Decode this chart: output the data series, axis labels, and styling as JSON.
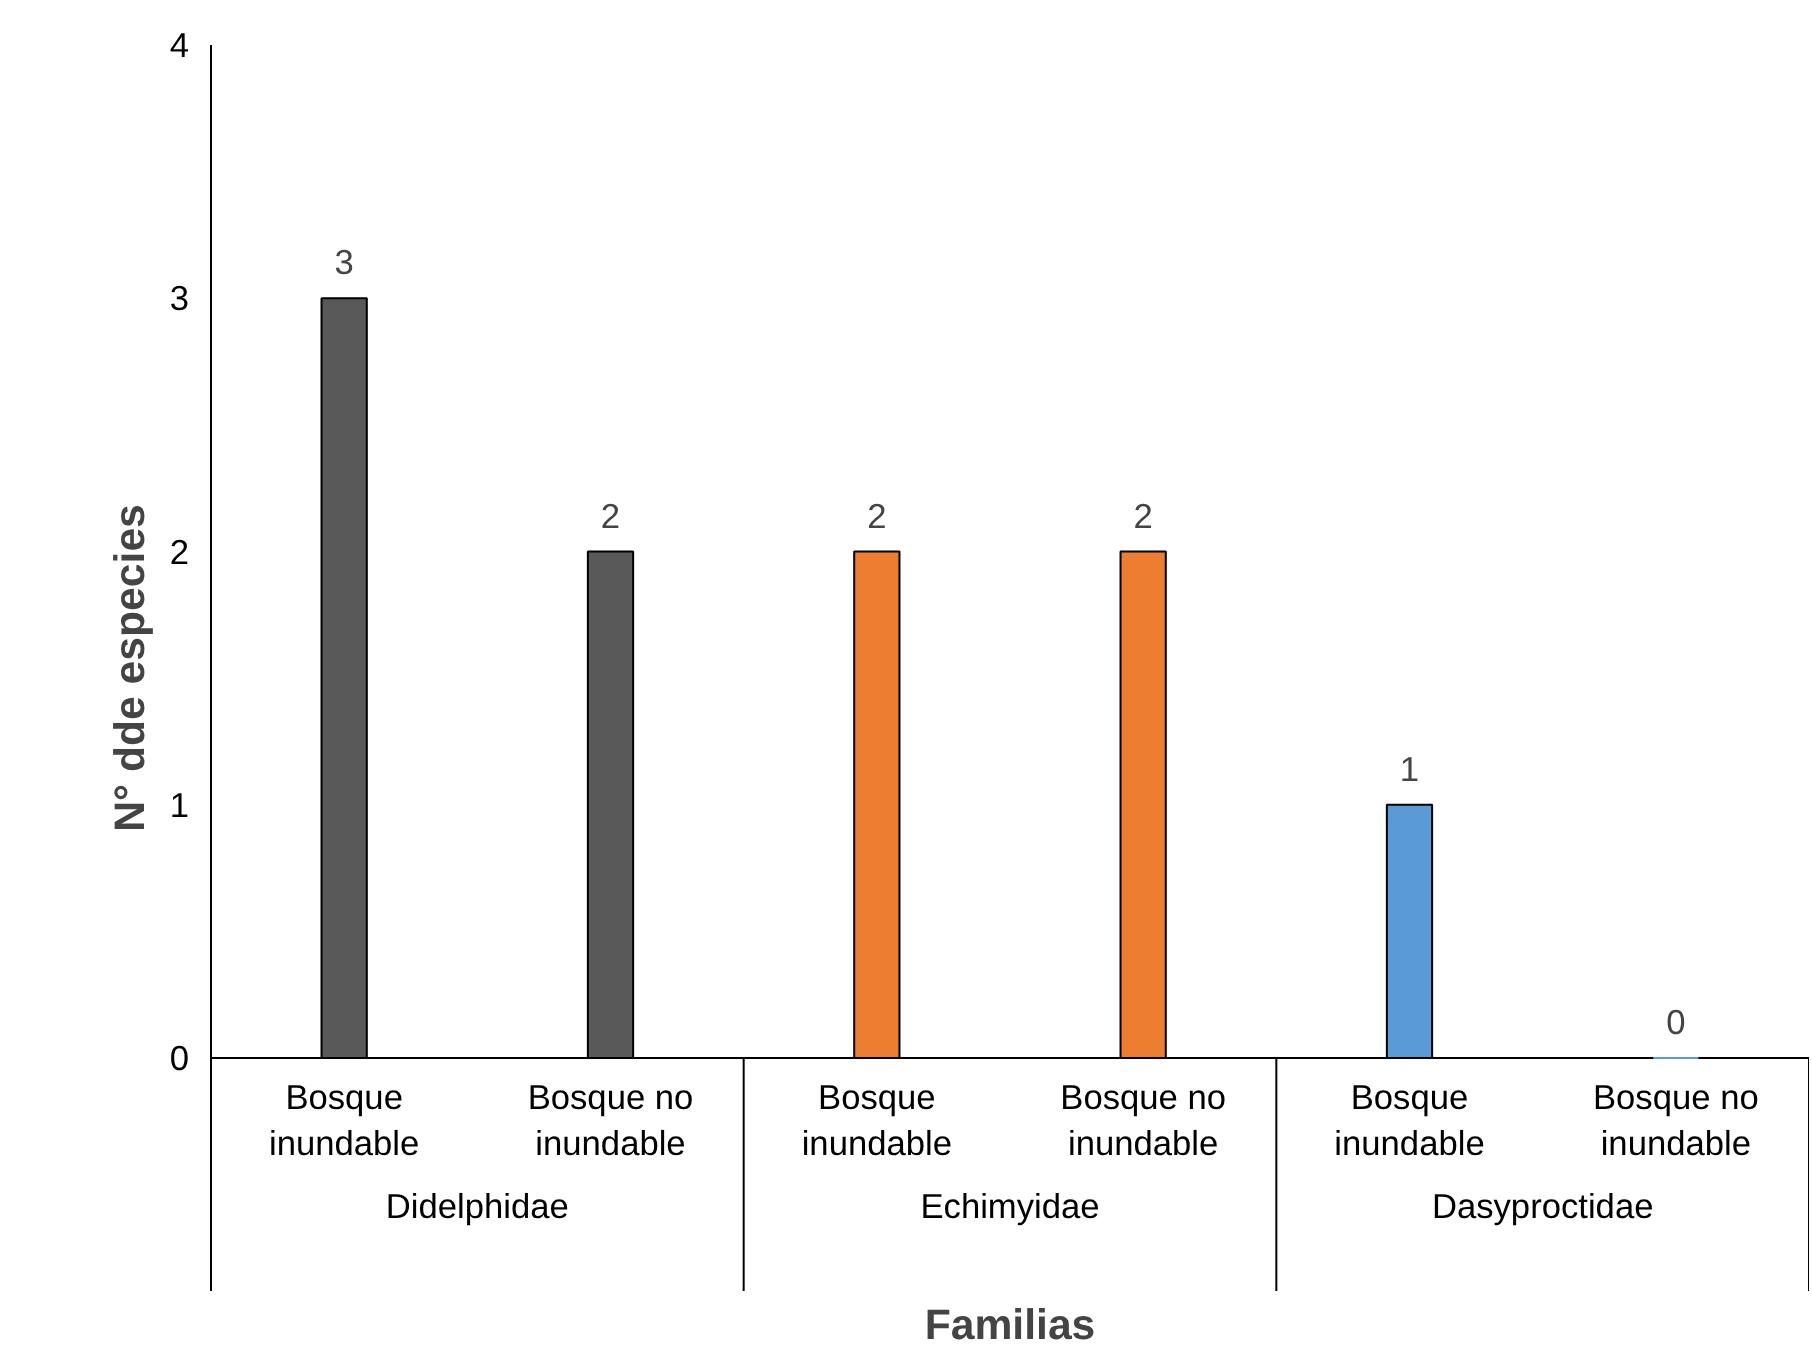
{
  "chart_data": {
    "type": "bar",
    "ylabel": "N° dde especies",
    "xlabel": "Familias",
    "categories": [
      "Bosque inundable",
      "Bosque no inundable",
      "Bosque inundable",
      "Bosque no inundable",
      "Bosque inundable",
      "Bosque no inundable"
    ],
    "series": [
      {
        "color": "#595959",
        "values": [
          3,
          2,
          null,
          null,
          null,
          null
        ]
      },
      {
        "color": "#ed7d31",
        "values": [
          null,
          null,
          2,
          2,
          null,
          null
        ]
      },
      {
        "color": "#5b9bd5",
        "values": [
          null,
          null,
          null,
          null,
          1,
          0
        ]
      }
    ],
    "annotations": [
      "Didelphidae",
      "Echimyidae",
      "Dasyproctidae"
    ],
    "ylim": [
      0,
      4
    ],
    "yticks": [
      0,
      1,
      2,
      3,
      4
    ],
    "grid": false,
    "data_labels": true
  }
}
